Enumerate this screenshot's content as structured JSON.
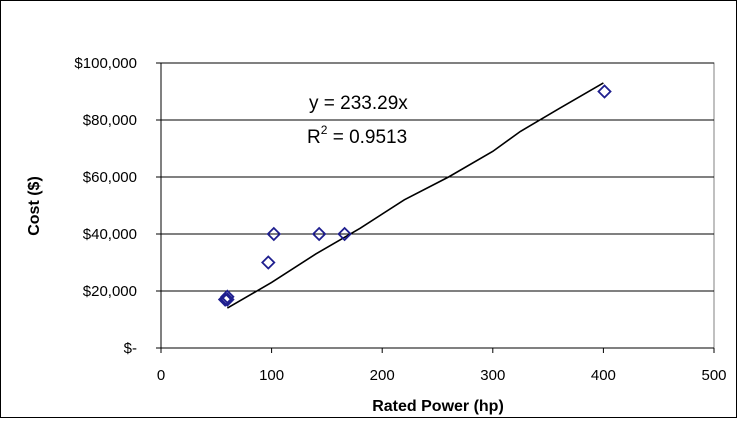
{
  "chart_data": {
    "type": "scatter",
    "xlabel": "Rated Power (hp)",
    "ylabel": "Cost ($)",
    "xlim": [
      0,
      500
    ],
    "ylim": [
      0,
      100000
    ],
    "x_ticks": [
      "0",
      "100",
      "200",
      "300",
      "400",
      "500"
    ],
    "y_ticks": [
      "$-",
      "$20,000",
      "$40,000",
      "$60,000",
      "$80,000",
      "$100,000"
    ],
    "grid": "horizontal",
    "marker": "diamond-open",
    "marker_color": "#1f1f8f",
    "series": [
      {
        "points": [
          {
            "x": 58,
            "y": 17000
          },
          {
            "x": 60,
            "y": 18000
          },
          {
            "x": 60,
            "y": 17000
          },
          {
            "x": 97,
            "y": 30000
          },
          {
            "x": 102,
            "y": 40000
          },
          {
            "x": 143,
            "y": 40000
          },
          {
            "x": 166,
            "y": 40000
          },
          {
            "x": 401,
            "y": 90000
          }
        ]
      }
    ],
    "trendline": {
      "points": [
        {
          "x": 60,
          "y": 14000
        },
        {
          "x": 100,
          "y": 23000
        },
        {
          "x": 140,
          "y": 33000
        },
        {
          "x": 180,
          "y": 42000
        },
        {
          "x": 220,
          "y": 52000
        },
        {
          "x": 260,
          "y": 60000
        },
        {
          "x": 300,
          "y": 69000
        },
        {
          "x": 325,
          "y": 76000
        },
        {
          "x": 360,
          "y": 84000
        },
        {
          "x": 400,
          "y": 93000
        }
      ]
    },
    "annotations": {
      "equation": "y = 233.29x",
      "r2_prefix": "R",
      "r2_sup": "2",
      "r2_value": " = 0.9513"
    }
  }
}
